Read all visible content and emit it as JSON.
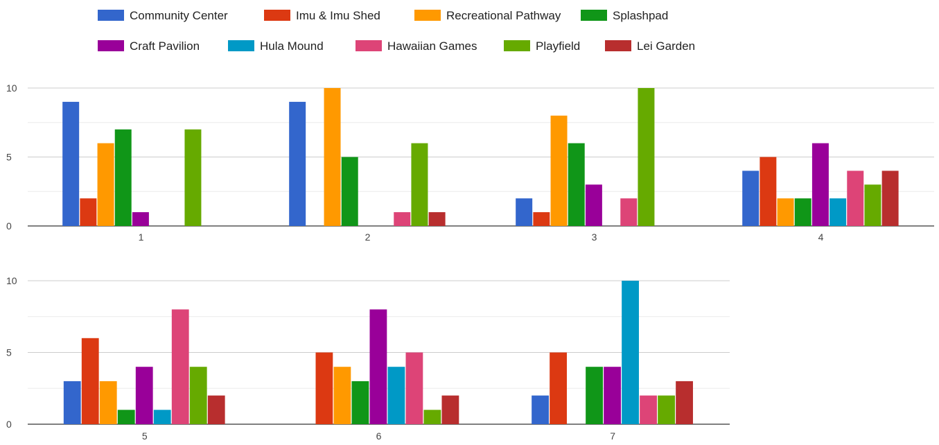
{
  "chart_data": {
    "type": "bar",
    "categories": [
      "1",
      "2",
      "3",
      "4",
      "5",
      "6",
      "7"
    ],
    "ylim": [
      0,
      10
    ],
    "yticks": [
      0,
      5,
      10
    ],
    "grid": true,
    "legend_position": "top",
    "series": [
      {
        "name": "Community Center",
        "color": "#3366cc",
        "values": [
          9,
          9,
          2,
          4,
          3,
          0,
          2
        ]
      },
      {
        "name": "Imu & Imu Shed",
        "color": "#dc3912",
        "values": [
          2,
          0,
          1,
          5,
          6,
          5,
          5
        ]
      },
      {
        "name": "Recreational Pathway",
        "color": "#ff9900",
        "values": [
          6,
          10,
          8,
          2,
          3,
          4,
          0
        ]
      },
      {
        "name": "Splashpad",
        "color": "#109618",
        "values": [
          7,
          5,
          6,
          2,
          1,
          3,
          4
        ]
      },
      {
        "name": "Craft Pavilion",
        "color": "#990099",
        "values": [
          1,
          0,
          3,
          6,
          4,
          8,
          4
        ]
      },
      {
        "name": "Hula Mound",
        "color": "#0099c6",
        "values": [
          0,
          0,
          0,
          2,
          1,
          4,
          10
        ]
      },
      {
        "name": "Hawaiian Games",
        "color": "#dd4477",
        "values": [
          0,
          1,
          2,
          4,
          8,
          5,
          2
        ]
      },
      {
        "name": "Playfield",
        "color": "#66aa00",
        "values": [
          7,
          6,
          10,
          3,
          4,
          1,
          2
        ]
      },
      {
        "name": "Lei Garden",
        "color": "#b82e2e",
        "values": [
          0,
          1,
          0,
          4,
          2,
          2,
          3
        ]
      }
    ]
  }
}
